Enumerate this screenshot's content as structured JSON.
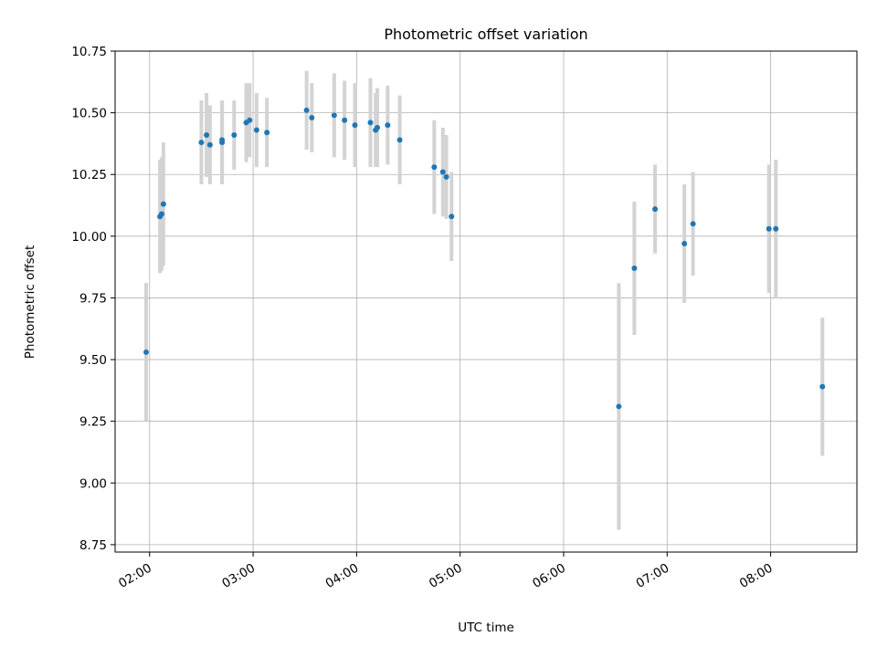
{
  "chart_data": {
    "type": "scatter",
    "title": "Photometric offset variation",
    "xlabel": "UTC time",
    "ylabel": "Photometric offset",
    "x_ticks": [
      "02:00",
      "03:00",
      "04:00",
      "05:00",
      "06:00",
      "07:00",
      "08:00"
    ],
    "y_ticks": [
      "8.75",
      "9.00",
      "9.25",
      "9.50",
      "9.75",
      "10.00",
      "10.25",
      "10.50",
      "10.75"
    ],
    "xlim": [
      "01:40",
      "08:50"
    ],
    "ylim": [
      8.72,
      10.75
    ],
    "grid": true,
    "point_color": "#1f77b4",
    "errorbar_color": "#d3d3d3",
    "series": [
      {
        "points": [
          {
            "x": "01:58",
            "y": 9.53,
            "err": 0.28
          },
          {
            "x": "02:06",
            "y": 10.08,
            "err": 0.23
          },
          {
            "x": "02:07",
            "y": 10.09,
            "err": 0.23
          },
          {
            "x": "02:08",
            "y": 10.13,
            "err": 0.25
          },
          {
            "x": "02:30",
            "y": 10.38,
            "err": 0.17
          },
          {
            "x": "02:33",
            "y": 10.41,
            "err": 0.17
          },
          {
            "x": "02:35",
            "y": 10.37,
            "err": 0.16
          },
          {
            "x": "02:42",
            "y": 10.38,
            "err": 0.17
          },
          {
            "x": "02:42",
            "y": 10.39,
            "err": 0.16
          },
          {
            "x": "02:49",
            "y": 10.41,
            "err": 0.14
          },
          {
            "x": "02:56",
            "y": 10.46,
            "err": 0.16
          },
          {
            "x": "02:58",
            "y": 10.47,
            "err": 0.15
          },
          {
            "x": "03:02",
            "y": 10.43,
            "err": 0.15
          },
          {
            "x": "03:08",
            "y": 10.42,
            "err": 0.14
          },
          {
            "x": "03:31",
            "y": 10.51,
            "err": 0.16
          },
          {
            "x": "03:34",
            "y": 10.48,
            "err": 0.14
          },
          {
            "x": "03:47",
            "y": 10.49,
            "err": 0.17
          },
          {
            "x": "03:53",
            "y": 10.47,
            "err": 0.16
          },
          {
            "x": "03:59",
            "y": 10.45,
            "err": 0.17
          },
          {
            "x": "04:08",
            "y": 10.46,
            "err": 0.18
          },
          {
            "x": "04:11",
            "y": 10.43,
            "err": 0.15
          },
          {
            "x": "04:12",
            "y": 10.44,
            "err": 0.16
          },
          {
            "x": "04:18",
            "y": 10.45,
            "err": 0.16
          },
          {
            "x": "04:25",
            "y": 10.39,
            "err": 0.18
          },
          {
            "x": "04:45",
            "y": 10.28,
            "err": 0.19
          },
          {
            "x": "04:50",
            "y": 10.26,
            "err": 0.18
          },
          {
            "x": "04:52",
            "y": 10.24,
            "err": 0.17
          },
          {
            "x": "04:55",
            "y": 10.08,
            "err": 0.18
          },
          {
            "x": "06:32",
            "y": 9.31,
            "err": 0.5
          },
          {
            "x": "06:41",
            "y": 9.87,
            "err": 0.27
          },
          {
            "x": "06:53",
            "y": 10.11,
            "err": 0.18
          },
          {
            "x": "07:10",
            "y": 9.97,
            "err": 0.24
          },
          {
            "x": "07:15",
            "y": 10.05,
            "err": 0.21
          },
          {
            "x": "07:59",
            "y": 10.03,
            "err": 0.26
          },
          {
            "x": "08:03",
            "y": 10.03,
            "err": 0.28
          },
          {
            "x": "08:30",
            "y": 9.39,
            "err": 0.28
          }
        ]
      }
    ]
  }
}
